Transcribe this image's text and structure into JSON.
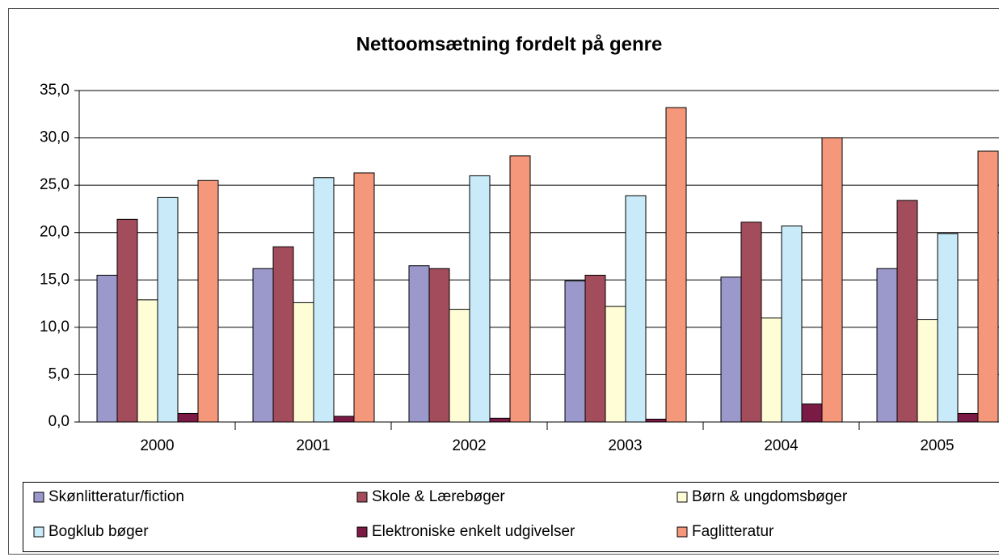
{
  "chart_data": {
    "type": "bar",
    "title": "Nettoomsætning fordelt på genre",
    "categories": [
      "2000",
      "2001",
      "2002",
      "2003",
      "2004",
      "2005"
    ],
    "series": [
      {
        "name": "Skønlitteratur/fiction",
        "color": "#9b99cc",
        "values": [
          15.5,
          16.2,
          16.5,
          14.9,
          15.3,
          16.2
        ]
      },
      {
        "name": "Skole & Lærebøger",
        "color": "#a34c5b",
        "values": [
          21.4,
          18.5,
          16.2,
          15.5,
          21.1,
          23.4
        ]
      },
      {
        "name": "Børn & ungdomsbøger",
        "color": "#fffdd6",
        "values": [
          12.9,
          12.6,
          11.9,
          12.2,
          11.0,
          10.8
        ]
      },
      {
        "name": "Bogklub bøger",
        "color": "#c9eaf8",
        "values": [
          23.7,
          25.8,
          26.0,
          23.9,
          20.7,
          19.9
        ]
      },
      {
        "name": "Elektroniske enkelt udgivelser",
        "color": "#7a1a45",
        "values": [
          0.9,
          0.6,
          0.4,
          0.3,
          1.9,
          0.9
        ]
      },
      {
        "name": "Faglitteratur",
        "color": "#f4977a",
        "values": [
          25.5,
          26.3,
          28.1,
          33.2,
          30.0,
          28.6
        ]
      }
    ],
    "ylim": [
      0,
      35
    ],
    "yticks": [
      {
        "value": 0,
        "label": "0,0"
      },
      {
        "value": 5,
        "label": "5,0"
      },
      {
        "value": 10,
        "label": "10,0"
      },
      {
        "value": 15,
        "label": "15,0"
      },
      {
        "value": 20,
        "label": "20,0"
      },
      {
        "value": 25,
        "label": "25,0"
      },
      {
        "value": 30,
        "label": "30,0"
      },
      {
        "value": 35,
        "label": "35,0"
      }
    ],
    "legend": "bottom"
  }
}
